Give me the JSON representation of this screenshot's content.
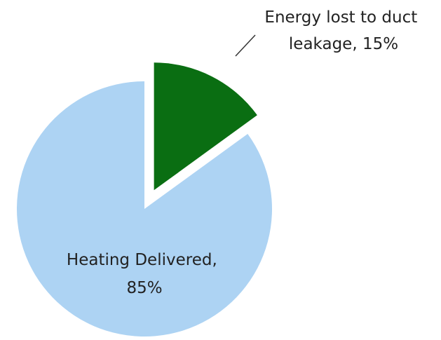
{
  "chart_data": {
    "type": "pie",
    "title": "",
    "slices": [
      {
        "label_lines": [
          "Heating Delivered,",
          "85%"
        ],
        "value": 85,
        "color": "#add3f3",
        "exploded": false
      },
      {
        "label_lines": [
          "Energy lost to duct",
          "leakage, 15%"
        ],
        "value": 15,
        "color": "#0a6e12",
        "exploded": true
      }
    ],
    "legend": "none",
    "grid": false
  }
}
